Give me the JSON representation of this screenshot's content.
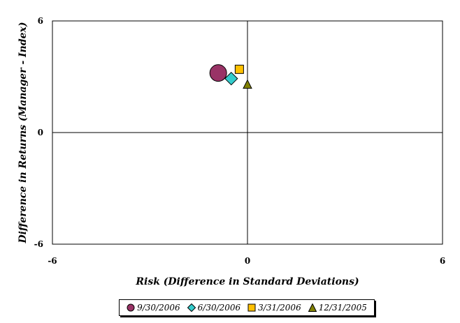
{
  "chart_data": {
    "type": "scatter",
    "xlabel": "Risk (Difference in Standard Deviations)",
    "ylabel": "Difference in Returns (Manager - Index)",
    "xlim": [
      -6,
      6
    ],
    "ylim": [
      -6,
      6
    ],
    "x_ticks": [
      "-6",
      "0",
      "6"
    ],
    "y_ticks": [
      "6",
      "0",
      "-6"
    ],
    "grid": false,
    "legend_position": "bottom",
    "series": [
      {
        "name": "9/30/2006",
        "marker": "circle",
        "color": "#993366",
        "x": -0.9,
        "y": 3.2
      },
      {
        "name": "6/30/2006",
        "marker": "diamond",
        "color": "#33CCCC",
        "x": -0.5,
        "y": 2.9
      },
      {
        "name": "3/31/2006",
        "marker": "square",
        "color": "#FFC000",
        "x": -0.25,
        "y": 3.4
      },
      {
        "name": "12/31/2005",
        "marker": "triangle",
        "color": "#808000",
        "x": 0.0,
        "y": 2.6
      }
    ]
  }
}
